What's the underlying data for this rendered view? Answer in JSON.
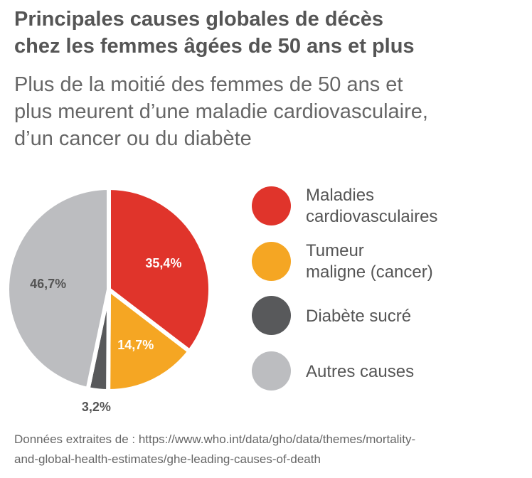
{
  "title": {
    "line1": "Principales causes globales de décès",
    "line2": "chez les femmes âgées de 50 ans et plus"
  },
  "subtitle": {
    "line1": "Plus de la moitié des femmes de 50 ans et",
    "line2": "plus meurent d’une maladie cardiovasculaire,",
    "line3": "d’un cancer ou du diabète"
  },
  "chart_data": {
    "type": "pie",
    "categories": [
      "Maladies cardiovasculaires",
      "Tumeur maligne (cancer)",
      "Diabète sucré",
      "Autres causes"
    ],
    "values": [
      35.4,
      14.7,
      3.2,
      46.7
    ],
    "value_labels": [
      "35,4%",
      "14,7%",
      "3,2%",
      "46,7%"
    ],
    "colors": [
      "#e0342b",
      "#f5a623",
      "#58595b",
      "#bcbdc0"
    ],
    "legend_position": "right"
  },
  "legend": {
    "items": [
      {
        "line1": "Maladies",
        "line2": "cardiovasculaires",
        "color": "#e0342b",
        "icon": "red-circle"
      },
      {
        "line1": "Tumeur",
        "line2": "maligne (cancer)",
        "color": "#f5a623",
        "icon": "orange-circle"
      },
      {
        "line1": "Diabète sucré",
        "line2": "",
        "color": "#58595b",
        "icon": "dark-gray-circle"
      },
      {
        "line1": "Autres causes",
        "line2": "",
        "color": "#bcbdc0",
        "icon": "light-gray-circle"
      }
    ]
  },
  "source": {
    "line1": "Données extraites de : https://www.who.int/data/gho/data/themes/mortality-",
    "line2": "and-global-health-estimates/ghe-leading-causes-of-death"
  }
}
